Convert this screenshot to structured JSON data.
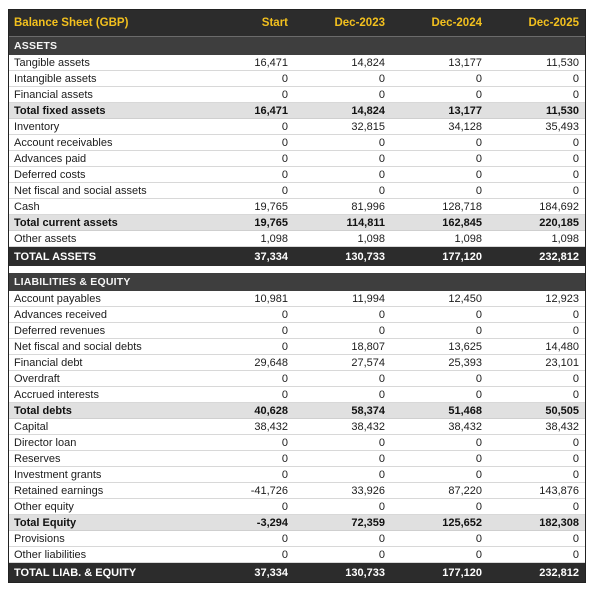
{
  "colors": {
    "accent_yellow": "#F2C01E",
    "header_bg": "#2C2C2C",
    "section_bg": "#3E3E3E",
    "subtotal_bg": "#E0E0E0",
    "row_divider": "#D8D8D8"
  },
  "table": {
    "header": {
      "title": "Balance Sheet (GBP)",
      "columns": [
        "Start",
        "Dec-2023",
        "Dec-2024",
        "Dec-2025"
      ]
    },
    "rows": [
      {
        "type": "section",
        "label": "ASSETS"
      },
      {
        "type": "item",
        "label": "Tangible assets",
        "values": [
          "16,471",
          "14,824",
          "13,177",
          "11,530"
        ]
      },
      {
        "type": "item",
        "label": "Intangible assets",
        "values": [
          "0",
          "0",
          "0",
          "0"
        ]
      },
      {
        "type": "item",
        "label": "Financial assets",
        "values": [
          "0",
          "0",
          "0",
          "0"
        ]
      },
      {
        "type": "subtotal",
        "label": "Total fixed assets",
        "values": [
          "16,471",
          "14,824",
          "13,177",
          "11,530"
        ]
      },
      {
        "type": "item",
        "label": "Inventory",
        "values": [
          "0",
          "32,815",
          "34,128",
          "35,493"
        ]
      },
      {
        "type": "item",
        "label": "Account receivables",
        "values": [
          "0",
          "0",
          "0",
          "0"
        ]
      },
      {
        "type": "item",
        "label": "Advances paid",
        "values": [
          "0",
          "0",
          "0",
          "0"
        ]
      },
      {
        "type": "item",
        "label": "Deferred costs",
        "values": [
          "0",
          "0",
          "0",
          "0"
        ]
      },
      {
        "type": "item",
        "label": "Net fiscal and social assets",
        "values": [
          "0",
          "0",
          "0",
          "0"
        ]
      },
      {
        "type": "item",
        "label": "Cash",
        "values": [
          "19,765",
          "81,996",
          "128,718",
          "184,692"
        ]
      },
      {
        "type": "subtotal",
        "label": "Total current assets",
        "values": [
          "19,765",
          "114,811",
          "162,845",
          "220,185"
        ]
      },
      {
        "type": "item",
        "label": "Other assets",
        "values": [
          "1,098",
          "1,098",
          "1,098",
          "1,098"
        ]
      },
      {
        "type": "grandtotal",
        "label": "TOTAL ASSETS",
        "values": [
          "37,334",
          "130,733",
          "177,120",
          "232,812"
        ]
      },
      {
        "type": "gap"
      },
      {
        "type": "section",
        "label": "LIABILITIES & EQUITY"
      },
      {
        "type": "item",
        "label": "Account payables",
        "values": [
          "10,981",
          "11,994",
          "12,450",
          "12,923"
        ]
      },
      {
        "type": "item",
        "label": "Advances received",
        "values": [
          "0",
          "0",
          "0",
          "0"
        ]
      },
      {
        "type": "item",
        "label": "Deferred revenues",
        "values": [
          "0",
          "0",
          "0",
          "0"
        ]
      },
      {
        "type": "item",
        "label": "Net fiscal and social debts",
        "values": [
          "0",
          "18,807",
          "13,625",
          "14,480"
        ]
      },
      {
        "type": "item",
        "label": "Financial debt",
        "values": [
          "29,648",
          "27,574",
          "25,393",
          "23,101"
        ]
      },
      {
        "type": "item",
        "label": "Overdraft",
        "values": [
          "0",
          "0",
          "0",
          "0"
        ]
      },
      {
        "type": "item",
        "label": "Accrued interests",
        "values": [
          "0",
          "0",
          "0",
          "0"
        ]
      },
      {
        "type": "subtotal",
        "label": "Total debts",
        "values": [
          "40,628",
          "58,374",
          "51,468",
          "50,505"
        ]
      },
      {
        "type": "item",
        "label": "Capital",
        "values": [
          "38,432",
          "38,432",
          "38,432",
          "38,432"
        ]
      },
      {
        "type": "item",
        "label": "Director loan",
        "values": [
          "0",
          "0",
          "0",
          "0"
        ]
      },
      {
        "type": "item",
        "label": "Reserves",
        "values": [
          "0",
          "0",
          "0",
          "0"
        ]
      },
      {
        "type": "item",
        "label": "Investment grants",
        "values": [
          "0",
          "0",
          "0",
          "0"
        ]
      },
      {
        "type": "item",
        "label": "Retained earnings",
        "values": [
          "-41,726",
          "33,926",
          "87,220",
          "143,876"
        ]
      },
      {
        "type": "item",
        "label": "Other equity",
        "values": [
          "0",
          "0",
          "0",
          "0"
        ]
      },
      {
        "type": "subtotal",
        "label": "Total Equity",
        "values": [
          "-3,294",
          "72,359",
          "125,652",
          "182,308"
        ]
      },
      {
        "type": "item",
        "label": "Provisions",
        "values": [
          "0",
          "0",
          "0",
          "0"
        ]
      },
      {
        "type": "item",
        "label": "Other liabilities",
        "values": [
          "0",
          "0",
          "0",
          "0"
        ]
      },
      {
        "type": "grandtotal",
        "label": "TOTAL LIAB. & EQUITY",
        "values": [
          "37,334",
          "130,733",
          "177,120",
          "232,812"
        ]
      }
    ]
  }
}
